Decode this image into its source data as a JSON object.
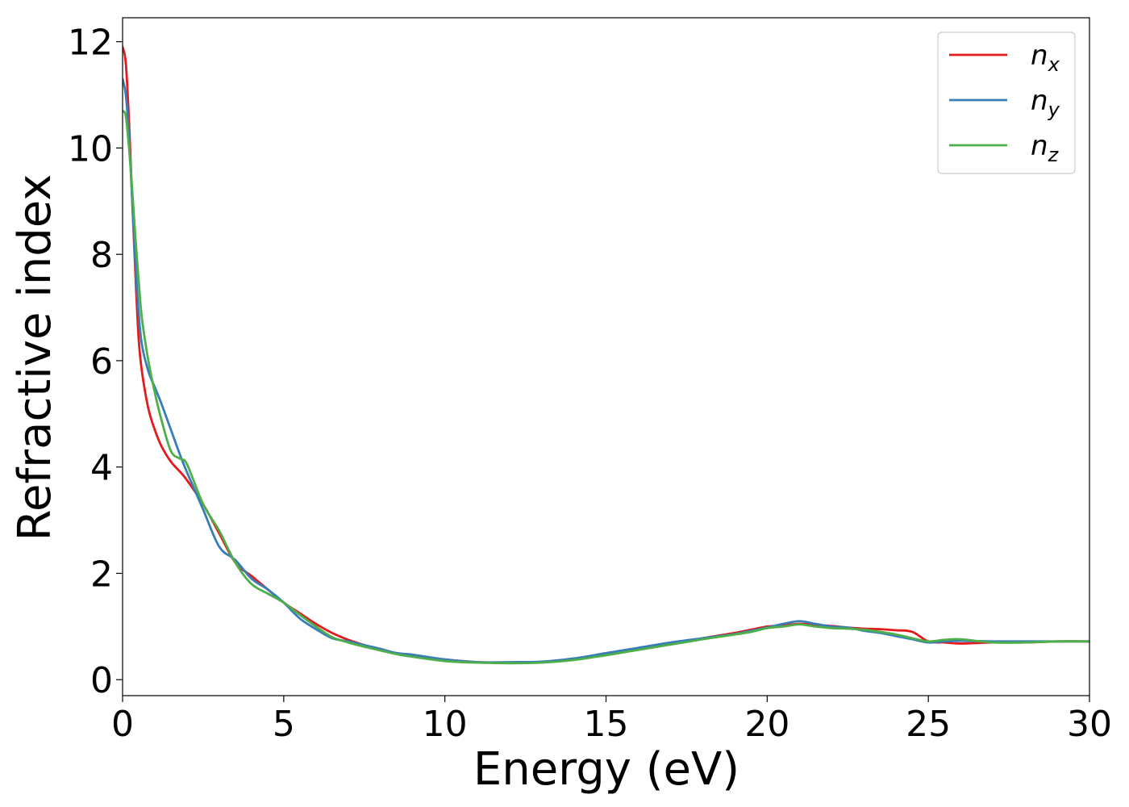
{
  "chart_data": {
    "type": "line",
    "title": "",
    "xlabel": "Energy (eV)",
    "ylabel": "Refractive index",
    "xlim": [
      0,
      30
    ],
    "ylim": [
      -0.3,
      12.45
    ],
    "xticks": [
      0,
      5,
      10,
      15,
      20,
      25,
      30
    ],
    "yticks": [
      0,
      2,
      4,
      6,
      8,
      10,
      12
    ],
    "grid": false,
    "legend_position": "top-right",
    "series": [
      {
        "name": "n",
        "subscript": "x",
        "color": "#e41a1c",
        "x": [
          0,
          0.1,
          0.2,
          0.3,
          0.4,
          0.5,
          0.6,
          0.8,
          1.0,
          1.2,
          1.5,
          1.8,
          2.0,
          2.5,
          3.0,
          3.5,
          4.0,
          4.5,
          5.0,
          5.5,
          6.0,
          6.5,
          7.0,
          7.5,
          8.0,
          8.5,
          9.0,
          10.0,
          11.0,
          12.0,
          13.0,
          14.0,
          15.0,
          16.0,
          17.0,
          18.0,
          19.0,
          19.5,
          20.0,
          20.5,
          21.0,
          21.5,
          22.0,
          22.5,
          23.0,
          23.5,
          24.0,
          24.5,
          25.0,
          25.5,
          26.0,
          27.0,
          28.0,
          29.0,
          30.0
        ],
        "values": [
          11.9,
          11.6,
          10.5,
          9.0,
          7.6,
          6.4,
          5.8,
          5.1,
          4.7,
          4.4,
          4.1,
          3.9,
          3.75,
          3.3,
          2.75,
          2.2,
          1.95,
          1.7,
          1.45,
          1.25,
          1.05,
          0.88,
          0.75,
          0.65,
          0.55,
          0.5,
          0.45,
          0.38,
          0.33,
          0.32,
          0.33,
          0.38,
          0.48,
          0.58,
          0.68,
          0.78,
          0.88,
          0.94,
          1.0,
          1.02,
          1.05,
          1.03,
          1.01,
          0.98,
          0.96,
          0.95,
          0.93,
          0.9,
          0.72,
          0.7,
          0.68,
          0.7,
          0.7,
          0.72,
          0.72
        ]
      },
      {
        "name": "n",
        "subscript": "y",
        "color": "#377eb8",
        "x": [
          0,
          0.1,
          0.2,
          0.3,
          0.4,
          0.5,
          0.6,
          0.8,
          1.0,
          1.2,
          1.5,
          1.8,
          2.0,
          2.5,
          3.0,
          3.5,
          4.0,
          4.5,
          5.0,
          5.5,
          6.0,
          6.5,
          7.0,
          7.5,
          8.0,
          8.5,
          9.0,
          10.0,
          11.0,
          12.0,
          13.0,
          14.0,
          15.0,
          16.0,
          17.0,
          18.0,
          19.0,
          19.5,
          20.0,
          20.5,
          21.0,
          21.5,
          22.0,
          22.5,
          23.0,
          23.5,
          24.0,
          24.5,
          25.0,
          25.5,
          26.0,
          27.0,
          28.0,
          29.0,
          30.0
        ],
        "values": [
          11.3,
          11.0,
          10.2,
          9.0,
          7.8,
          6.9,
          6.3,
          5.8,
          5.5,
          5.2,
          4.7,
          4.2,
          3.9,
          3.2,
          2.5,
          2.25,
          1.9,
          1.7,
          1.45,
          1.15,
          0.95,
          0.78,
          0.72,
          0.65,
          0.58,
          0.5,
          0.47,
          0.38,
          0.33,
          0.33,
          0.34,
          0.4,
          0.5,
          0.6,
          0.7,
          0.78,
          0.86,
          0.92,
          0.98,
          1.05,
          1.1,
          1.05,
          1.0,
          0.98,
          0.92,
          0.88,
          0.82,
          0.76,
          0.7,
          0.72,
          0.73,
          0.72,
          0.72,
          0.72,
          0.72
        ]
      },
      {
        "name": "n",
        "subscript": "z",
        "color": "#4daf4a",
        "x": [
          0,
          0.1,
          0.2,
          0.3,
          0.4,
          0.5,
          0.6,
          0.8,
          1.0,
          1.2,
          1.5,
          1.8,
          2.0,
          2.5,
          3.0,
          3.5,
          4.0,
          4.5,
          5.0,
          5.5,
          6.0,
          6.5,
          7.0,
          7.5,
          8.0,
          8.5,
          9.0,
          10.0,
          11.0,
          12.0,
          13.0,
          14.0,
          15.0,
          16.0,
          17.0,
          18.0,
          19.0,
          19.5,
          20.0,
          20.5,
          21.0,
          21.5,
          22.0,
          22.5,
          23.0,
          23.5,
          24.0,
          24.5,
          25.0,
          25.5,
          26.0,
          27.0,
          28.0,
          29.0,
          30.0
        ],
        "values": [
          10.7,
          10.6,
          10.0,
          9.2,
          8.3,
          7.5,
          6.8,
          6.0,
          5.4,
          4.9,
          4.3,
          4.15,
          4.05,
          3.3,
          2.8,
          2.2,
          1.8,
          1.62,
          1.45,
          1.22,
          1.0,
          0.8,
          0.7,
          0.62,
          0.55,
          0.48,
          0.43,
          0.35,
          0.32,
          0.31,
          0.32,
          0.37,
          0.46,
          0.56,
          0.66,
          0.76,
          0.85,
          0.9,
          0.97,
          1.0,
          1.04,
          1.0,
          0.97,
          0.96,
          0.94,
          0.9,
          0.85,
          0.78,
          0.72,
          0.75,
          0.76,
          0.7,
          0.7,
          0.72,
          0.72
        ]
      }
    ]
  }
}
